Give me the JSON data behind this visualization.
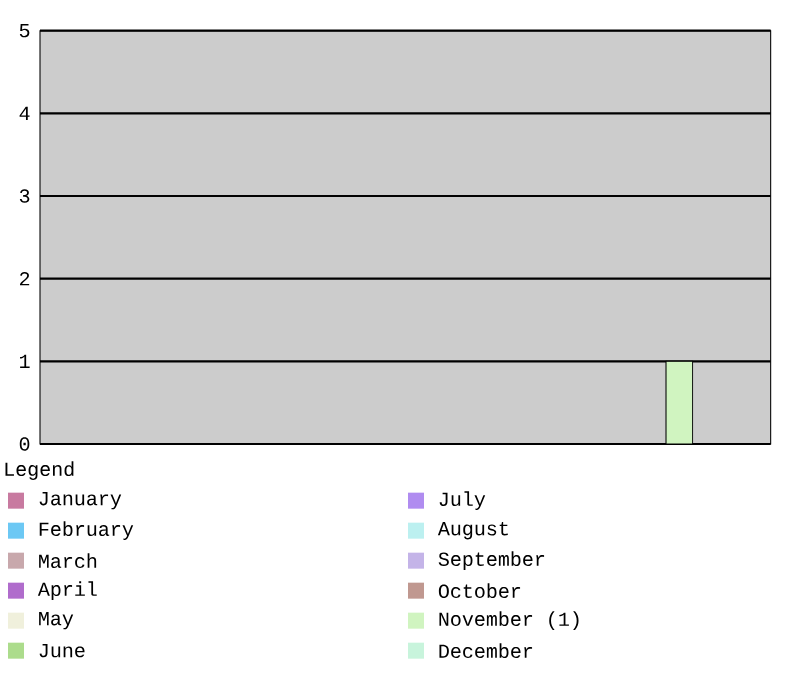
{
  "chart_data": {
    "type": "bar",
    "categories": [
      null,
      null,
      null,
      null,
      null,
      null,
      null,
      null,
      null,
      null,
      null,
      null
    ],
    "legend_title": "Legend",
    "legend": "bottom",
    "grid": "y",
    "ylim": [
      0,
      5
    ],
    "yticks": [
      0,
      1,
      2,
      3,
      4,
      5
    ],
    "series": [
      {
        "name": "January",
        "color": "#c87aa0",
        "values": [
          0,
          null,
          null,
          null,
          null,
          null,
          null,
          null,
          null,
          null,
          null,
          null
        ]
      },
      {
        "name": "February",
        "color": "#6cc8f4",
        "values": [
          null,
          0,
          null,
          null,
          null,
          null,
          null,
          null,
          null,
          null,
          null,
          null
        ]
      },
      {
        "name": "March",
        "color": "#c8a8ac",
        "values": [
          null,
          null,
          0,
          null,
          null,
          null,
          null,
          null,
          null,
          null,
          null,
          null
        ]
      },
      {
        "name": "April",
        "color": "#b06ccc",
        "values": [
          null,
          null,
          null,
          0,
          null,
          null,
          null,
          null,
          null,
          null,
          null,
          null
        ]
      },
      {
        "name": "May",
        "color": "#f0f0dc",
        "values": [
          null,
          null,
          null,
          null,
          0,
          null,
          null,
          null,
          null,
          null,
          null,
          null
        ]
      },
      {
        "name": "June",
        "color": "#acdc8c",
        "values": [
          null,
          null,
          null,
          null,
          null,
          0,
          null,
          null,
          null,
          null,
          null,
          null
        ]
      },
      {
        "name": "July",
        "color": "#b08cf0",
        "values": [
          null,
          null,
          null,
          null,
          null,
          null,
          0,
          null,
          null,
          null,
          null,
          null
        ]
      },
      {
        "name": "August",
        "color": "#bcf0f0",
        "values": [
          null,
          null,
          null,
          null,
          null,
          null,
          null,
          0,
          null,
          null,
          null,
          null
        ]
      },
      {
        "name": "September",
        "color": "#c4b4e8",
        "values": [
          null,
          null,
          null,
          null,
          null,
          null,
          null,
          null,
          0,
          null,
          null,
          null
        ]
      },
      {
        "name": "October",
        "color": "#c09890",
        "values": [
          null,
          null,
          null,
          null,
          null,
          null,
          null,
          null,
          null,
          0,
          null,
          null
        ]
      },
      {
        "name": "November (1)",
        "color": "#d0f4c0",
        "values": [
          null,
          null,
          null,
          null,
          null,
          null,
          null,
          null,
          null,
          null,
          1,
          null
        ]
      },
      {
        "name": "December",
        "color": "#c8f4dc",
        "values": [
          null,
          null,
          null,
          null,
          null,
          null,
          null,
          null,
          null,
          null,
          null,
          0
        ]
      }
    ]
  }
}
